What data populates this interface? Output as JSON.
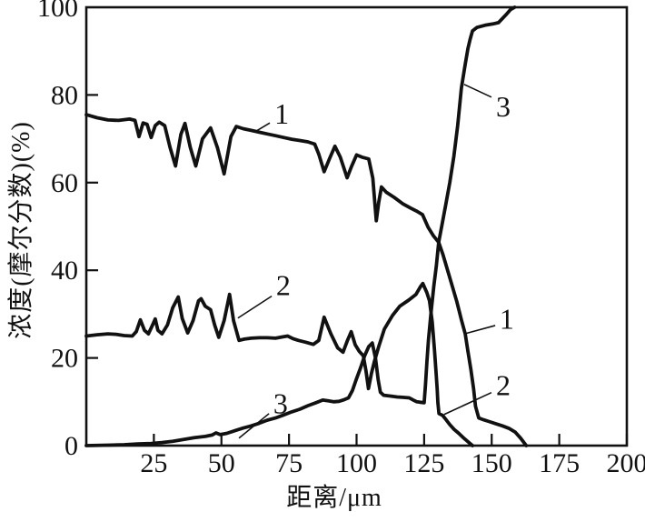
{
  "figure": {
    "background": "#ffffff",
    "ink": "#111111"
  },
  "chart_data": {
    "type": "line",
    "title": "",
    "xlabel": "距离/μm",
    "ylabel": "浓度(摩尔分数)(%)",
    "xlim": [
      0,
      200
    ],
    "ylim": [
      0,
      100
    ],
    "x_ticks": [
      25,
      50,
      75,
      100,
      125,
      150,
      175,
      200
    ],
    "y_ticks": [
      0,
      20,
      40,
      60,
      80,
      100
    ],
    "grid": false,
    "legend_position": "none-inline-curve-labels",
    "series": [
      {
        "name": "1",
        "points": [
          [
            0,
            75.5
          ],
          [
            4,
            74.8
          ],
          [
            8,
            74.3
          ],
          [
            12,
            74.2
          ],
          [
            16,
            74.5
          ],
          [
            18,
            74.2
          ],
          [
            19.5,
            70.5
          ],
          [
            21,
            73.6
          ],
          [
            22.5,
            73.3
          ],
          [
            24,
            70.3
          ],
          [
            25.5,
            73
          ],
          [
            27,
            73.8
          ],
          [
            29,
            73
          ],
          [
            31,
            68
          ],
          [
            33,
            63.8
          ],
          [
            35,
            71
          ],
          [
            36.5,
            73.5
          ],
          [
            38.5,
            68
          ],
          [
            40.5,
            63.8
          ],
          [
            43,
            70
          ],
          [
            46,
            72.5
          ],
          [
            48.5,
            68
          ],
          [
            51,
            62
          ],
          [
            53.5,
            70.5
          ],
          [
            55.5,
            72.8
          ],
          [
            58,
            72.3
          ],
          [
            61,
            71.9
          ],
          [
            64,
            71.5
          ],
          [
            67,
            71.1
          ],
          [
            70,
            70.7
          ],
          [
            73,
            70.3
          ],
          [
            76,
            69.9
          ],
          [
            79,
            69.6
          ],
          [
            82,
            69.3
          ],
          [
            84.5,
            68.8
          ],
          [
            86,
            66.5
          ],
          [
            88,
            62.5
          ],
          [
            90,
            65.5
          ],
          [
            92,
            68.3
          ],
          [
            94,
            65.8
          ],
          [
            96.5,
            61.1
          ],
          [
            98,
            63.5
          ],
          [
            100,
            66.3
          ],
          [
            102,
            65.8
          ],
          [
            104.5,
            65.4
          ],
          [
            106,
            61
          ],
          [
            107.3,
            51.3
          ],
          [
            108.2,
            55.5
          ],
          [
            109.2,
            59
          ],
          [
            111,
            57.8
          ],
          [
            114,
            56.6
          ],
          [
            117,
            55.2
          ],
          [
            120,
            54.2
          ],
          [
            122.5,
            53.4
          ],
          [
            124.4,
            52.7
          ],
          [
            126.5,
            49.8
          ],
          [
            128.5,
            47.8
          ],
          [
            130.4,
            46.4
          ],
          [
            132,
            43.5
          ],
          [
            133.8,
            39.7
          ],
          [
            135.5,
            36.2
          ],
          [
            137.1,
            32.8
          ],
          [
            138.8,
            28.7
          ],
          [
            140.2,
            25.5
          ],
          [
            141.2,
            21.5
          ],
          [
            142.3,
            17.4
          ],
          [
            143.3,
            13
          ],
          [
            144,
            9
          ],
          [
            145.2,
            6.3
          ],
          [
            147,
            5.9
          ],
          [
            149,
            5.5
          ],
          [
            151.5,
            5
          ],
          [
            154,
            4.5
          ],
          [
            156.5,
            3.9
          ],
          [
            158.7,
            3.1
          ],
          [
            160.7,
            1.7
          ],
          [
            162.8,
            0
          ]
        ]
      },
      {
        "name": "2",
        "points": [
          [
            0,
            25
          ],
          [
            4,
            25.3
          ],
          [
            8,
            25.5
          ],
          [
            11,
            25.4
          ],
          [
            14,
            25.1
          ],
          [
            17,
            25
          ],
          [
            18.5,
            26
          ],
          [
            20,
            28.7
          ],
          [
            21.5,
            26.3
          ],
          [
            23,
            25.5
          ],
          [
            24.5,
            27.5
          ],
          [
            25.5,
            28.9
          ],
          [
            26.5,
            26.3
          ],
          [
            28,
            25.5
          ],
          [
            30,
            27.5
          ],
          [
            32,
            31.5
          ],
          [
            34,
            33.9
          ],
          [
            35.5,
            29
          ],
          [
            37.5,
            25.7
          ],
          [
            39.5,
            28.5
          ],
          [
            41.5,
            33
          ],
          [
            42.5,
            33.5
          ],
          [
            44,
            31.8
          ],
          [
            46,
            31
          ],
          [
            47.5,
            27.5
          ],
          [
            49,
            24.7
          ],
          [
            51,
            28.5
          ],
          [
            53,
            34.5
          ],
          [
            54.5,
            28.5
          ],
          [
            56.5,
            24
          ],
          [
            58.5,
            24.3
          ],
          [
            61,
            24.5
          ],
          [
            64,
            24.6
          ],
          [
            67,
            24.6
          ],
          [
            70,
            24.5
          ],
          [
            72.5,
            24.8
          ],
          [
            74.5,
            25
          ],
          [
            76.5,
            24.4
          ],
          [
            78.5,
            24
          ],
          [
            81,
            23.6
          ],
          [
            84,
            23.1
          ],
          [
            86,
            24
          ],
          [
            88,
            29.3
          ],
          [
            90.5,
            25.5
          ],
          [
            93,
            22.3
          ],
          [
            95,
            21.3
          ],
          [
            96.5,
            23.8
          ],
          [
            98,
            26
          ],
          [
            99.5,
            23
          ],
          [
            101,
            21.5
          ],
          [
            102.5,
            20.5
          ],
          [
            103.5,
            17
          ],
          [
            104.4,
            13
          ],
          [
            105.5,
            16.5
          ],
          [
            106.6,
            19.2
          ],
          [
            108.2,
            22.6
          ],
          [
            110.3,
            26.6
          ],
          [
            113.3,
            29.7
          ],
          [
            116,
            31.8
          ],
          [
            119.3,
            33.2
          ],
          [
            122,
            34.5
          ],
          [
            123.7,
            36.3
          ],
          [
            124.5,
            37
          ],
          [
            126,
            34.9
          ],
          [
            127,
            33
          ],
          [
            128,
            28.2
          ],
          [
            128.8,
            22
          ],
          [
            129.4,
            16.7
          ],
          [
            129.8,
            13
          ],
          [
            130.1,
            9.8
          ],
          [
            130.5,
            7.3
          ],
          [
            131.8,
            6.9
          ],
          [
            133,
            6
          ],
          [
            134.5,
            4.8
          ],
          [
            136.1,
            3.7
          ],
          [
            137.8,
            2.8
          ],
          [
            139.5,
            1.8
          ],
          [
            141.2,
            0.9
          ],
          [
            142.9,
            0
          ]
        ]
      },
      {
        "name": "3",
        "points": [
          [
            0,
            0
          ],
          [
            8,
            0.1
          ],
          [
            14,
            0.2
          ],
          [
            19,
            0.4
          ],
          [
            24,
            0.5
          ],
          [
            28,
            0.7
          ],
          [
            32,
            1
          ],
          [
            36,
            1.4
          ],
          [
            40,
            1.8
          ],
          [
            44,
            2.1
          ],
          [
            46.5,
            2.4
          ],
          [
            48,
            2.9
          ],
          [
            49.5,
            2.5
          ],
          [
            52,
            2.8
          ],
          [
            55,
            3.4
          ],
          [
            58,
            4
          ],
          [
            61,
            4.5
          ],
          [
            64,
            5.1
          ],
          [
            67,
            5.8
          ],
          [
            70,
            6.3
          ],
          [
            73,
            7
          ],
          [
            76,
            7.7
          ],
          [
            79,
            8.3
          ],
          [
            82,
            9.1
          ],
          [
            85,
            9.8
          ],
          [
            87.5,
            10.4
          ],
          [
            89.5,
            10.2
          ],
          [
            91.5,
            10
          ],
          [
            93.5,
            10.1
          ],
          [
            95.5,
            10.5
          ],
          [
            97,
            10.9
          ],
          [
            98.5,
            12.6
          ],
          [
            100,
            15.3
          ],
          [
            101.5,
            17.8
          ],
          [
            103,
            20.5
          ],
          [
            104.5,
            22.6
          ],
          [
            105.8,
            23.4
          ],
          [
            107,
            20
          ],
          [
            108,
            15
          ],
          [
            108.8,
            12.2
          ],
          [
            110,
            11.5
          ],
          [
            112.5,
            11.3
          ],
          [
            115,
            11.1
          ],
          [
            117.5,
            11
          ],
          [
            119.5,
            10.9
          ],
          [
            121,
            10.4
          ],
          [
            122.3,
            10
          ],
          [
            123.5,
            9.9
          ],
          [
            125,
            9.8
          ],
          [
            125.5,
            14
          ],
          [
            126,
            19
          ],
          [
            126.6,
            24
          ],
          [
            127.5,
            30
          ],
          [
            128.6,
            36.5
          ],
          [
            129.5,
            41
          ],
          [
            130.4,
            46.4
          ],
          [
            131.5,
            50
          ],
          [
            133,
            55
          ],
          [
            134.5,
            60
          ],
          [
            136,
            66
          ],
          [
            137.4,
            73
          ],
          [
            138.8,
            81.6
          ],
          [
            140.2,
            87
          ],
          [
            141.2,
            90.6
          ],
          [
            142,
            92.7
          ],
          [
            142.9,
            94.6
          ],
          [
            144.5,
            95.4
          ],
          [
            147.5,
            95.9
          ],
          [
            150.5,
            96.2
          ],
          [
            152.5,
            96.5
          ],
          [
            155.3,
            98.3
          ],
          [
            157,
            99.5
          ],
          [
            158.5,
            100
          ]
        ]
      }
    ],
    "annotations": [
      {
        "text": "1",
        "tx": 72.3,
        "ty": 75.7,
        "lx1": 67.9,
        "ly1": 73.6,
        "lx2": 62.2,
        "ly2": 71.5
      },
      {
        "text": "2",
        "tx": 72.9,
        "ty": 36.6,
        "lx1": 68.6,
        "ly1": 34.1,
        "lx2": 56.1,
        "ly2": 29.1
      },
      {
        "text": "3",
        "tx": 71.9,
        "ty": 9.6,
        "lx1": 67.6,
        "ly1": 7.3,
        "lx2": 56.5,
        "ly2": 1.7
      },
      {
        "text": "3",
        "tx": 154.3,
        "ty": 77.4,
        "lx1": 149.9,
        "ly1": 79.5,
        "lx2": 139.8,
        "ly2": 82.4
      },
      {
        "text": "1",
        "tx": 155.6,
        "ty": 28.9,
        "lx1": 151.3,
        "ly1": 27.4,
        "lx2": 140.5,
        "ly2": 25.6
      },
      {
        "text": "2",
        "tx": 154.3,
        "ty": 13.8,
        "lx1": 149.9,
        "ly1": 12.1,
        "lx2": 132.4,
        "ly2": 7.1
      }
    ]
  }
}
